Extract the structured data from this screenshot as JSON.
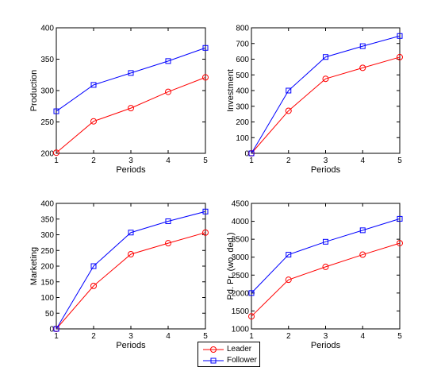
{
  "chart_data": [
    {
      "type": "line",
      "xlabel": "Periods",
      "ylabel": "Production",
      "x": [
        1,
        2,
        3,
        4,
        5
      ],
      "xlim": [
        1,
        5
      ],
      "xticks": [
        "1",
        "2",
        "3",
        "4",
        "5"
      ],
      "ylim": [
        200,
        400
      ],
      "yticks": [
        "200",
        "250",
        "300",
        "350",
        "400"
      ],
      "grid": false,
      "series": [
        {
          "name": "Leader",
          "color": "#ff0000",
          "marker": "circle",
          "values": [
            201,
            251,
            272,
            298,
            321
          ]
        },
        {
          "name": "Follower",
          "color": "#0000ff",
          "marker": "square",
          "values": [
            267,
            309,
            328,
            347,
            368
          ]
        }
      ]
    },
    {
      "type": "line",
      "xlabel": "Periods",
      "ylabel": "Investment",
      "x": [
        1,
        2,
        3,
        4,
        5
      ],
      "xlim": [
        1,
        5
      ],
      "xticks": [
        "1",
        "2",
        "3",
        "4",
        "5"
      ],
      "ylim": [
        0,
        800
      ],
      "yticks": [
        "0",
        "100",
        "200",
        "300",
        "400",
        "500",
        "600",
        "700",
        "800"
      ],
      "grid": false,
      "series": [
        {
          "name": "Leader",
          "color": "#ff0000",
          "marker": "circle",
          "values": [
            0,
            271,
            475,
            545,
            613
          ]
        },
        {
          "name": "Follower",
          "color": "#0000ff",
          "marker": "square",
          "values": [
            0,
            400,
            614,
            683,
            748
          ]
        }
      ]
    },
    {
      "type": "line",
      "xlabel": "Periods",
      "ylabel": "Marketing",
      "x": [
        1,
        2,
        3,
        4,
        5
      ],
      "xlim": [
        1,
        5
      ],
      "xticks": [
        "1",
        "2",
        "3",
        "4",
        "5"
      ],
      "ylim": [
        0,
        400
      ],
      "yticks": [
        "0",
        "50",
        "100",
        "150",
        "200",
        "250",
        "300",
        "350",
        "400"
      ],
      "grid": false,
      "series": [
        {
          "name": "Leader",
          "color": "#ff0000",
          "marker": "circle",
          "values": [
            0,
            137,
            238,
            273,
            307
          ]
        },
        {
          "name": "Follower",
          "color": "#0000ff",
          "marker": "square",
          "values": [
            0,
            200,
            307,
            343,
            374
          ]
        }
      ]
    },
    {
      "type": "line",
      "xlabel": "Periods",
      "ylabel": "Pd. Pr. (wo. ded.)",
      "x": [
        1,
        2,
        3,
        4,
        5
      ],
      "xlim": [
        1,
        5
      ],
      "xticks": [
        "1",
        "2",
        "3",
        "4",
        "5"
      ],
      "ylim": [
        1000,
        4500
      ],
      "yticks": [
        "1000",
        "1500",
        "2000",
        "2500",
        "3000",
        "3500",
        "4000",
        "4500"
      ],
      "grid": false,
      "series": [
        {
          "name": "Leader",
          "color": "#ff0000",
          "marker": "circle",
          "values": [
            1350,
            2370,
            2730,
            3070,
            3390
          ]
        },
        {
          "name": "Follower",
          "color": "#0000ff",
          "marker": "square",
          "values": [
            2000,
            3070,
            3430,
            3750,
            4070
          ]
        }
      ]
    }
  ],
  "legend": {
    "placement": "bottom-center",
    "items": [
      {
        "label": "Leader",
        "color": "#ff0000",
        "marker": "circle"
      },
      {
        "label": "Follower",
        "color": "#0000ff",
        "marker": "square"
      }
    ]
  }
}
